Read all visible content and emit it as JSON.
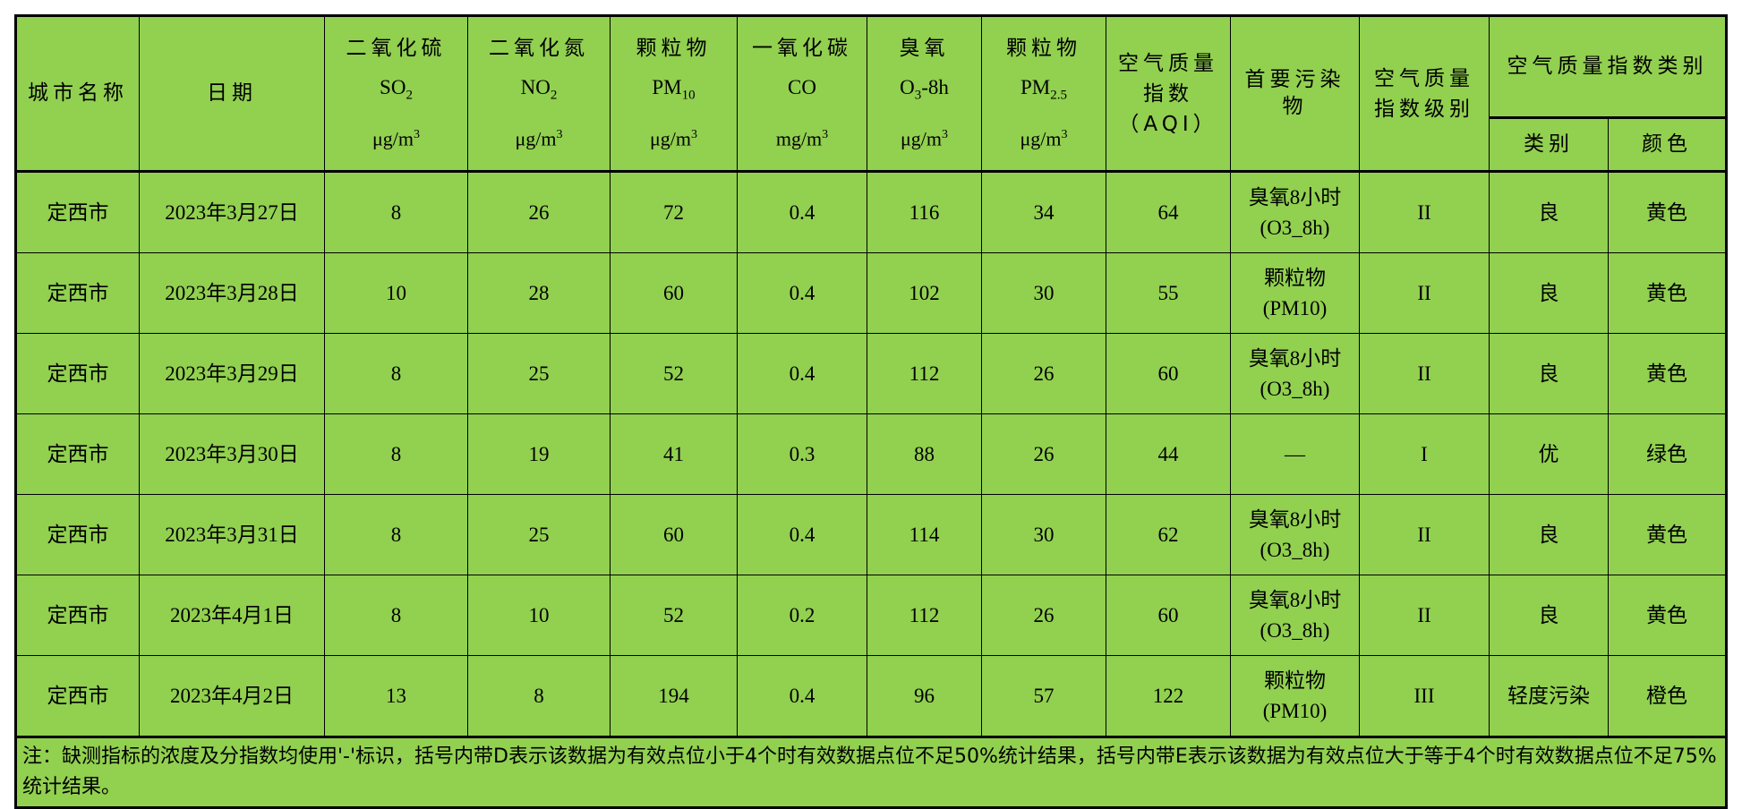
{
  "header": {
    "city": "城市名称",
    "date": "日期",
    "columns": [
      {
        "name": "二氧化硫",
        "formula": "SO",
        "sub": "2",
        "suffix": "",
        "unit": "μg/m",
        "sup": "3"
      },
      {
        "name": "二氧化氮",
        "formula": "NO",
        "sub": "2",
        "suffix": "",
        "unit": "μg/m",
        "sup": "3"
      },
      {
        "name": "颗粒物",
        "formula": "PM",
        "sub": "10",
        "suffix": "",
        "unit": "μg/m",
        "sup": "3"
      },
      {
        "name": "一氧化碳",
        "formula": "CO",
        "sub": "",
        "suffix": "",
        "unit": "mg/m",
        "sup": "3"
      },
      {
        "name": "臭氧",
        "formula": "O",
        "sub": "3",
        "suffix": "-8h",
        "unit": "μg/m",
        "sup": "3"
      },
      {
        "name": "颗粒物",
        "formula": "PM",
        "sub": "2.5",
        "suffix": "",
        "unit": "μg/m",
        "sup": "3"
      }
    ],
    "aqi_line1": "空气质量",
    "aqi_line2": "指数",
    "aqi_line3": "（AQI）",
    "primary_pollutant": "首要污染物",
    "level_line1": "空气质量",
    "level_line2": "指数级别",
    "category_group": "空气质量指数类别",
    "category": "类别",
    "color": "颜色"
  },
  "rows": [
    {
      "city": "定西市",
      "date": "2023年3月27日",
      "so2": "8",
      "no2": "26",
      "pm10": "72",
      "co": "0.4",
      "o3": "116",
      "pm25": "34",
      "aqi": "64",
      "pol1": "臭氧8小时",
      "pol2": "(O3_8h)",
      "level": "II",
      "category": "良",
      "color": "黄色"
    },
    {
      "city": "定西市",
      "date": "2023年3月28日",
      "so2": "10",
      "no2": "28",
      "pm10": "60",
      "co": "0.4",
      "o3": "102",
      "pm25": "30",
      "aqi": "55",
      "pol1": "颗粒物",
      "pol2": "(PM10)",
      "level": "II",
      "category": "良",
      "color": "黄色"
    },
    {
      "city": "定西市",
      "date": "2023年3月29日",
      "so2": "8",
      "no2": "25",
      "pm10": "52",
      "co": "0.4",
      "o3": "112",
      "pm25": "26",
      "aqi": "60",
      "pol1": "臭氧8小时",
      "pol2": "(O3_8h)",
      "level": "II",
      "category": "良",
      "color": "黄色"
    },
    {
      "city": "定西市",
      "date": "2023年3月30日",
      "so2": "8",
      "no2": "19",
      "pm10": "41",
      "co": "0.3",
      "o3": "88",
      "pm25": "26",
      "aqi": "44",
      "pol1": "—",
      "pol2": "",
      "level": "I",
      "category": "优",
      "color": "绿色"
    },
    {
      "city": "定西市",
      "date": "2023年3月31日",
      "so2": "8",
      "no2": "25",
      "pm10": "60",
      "co": "0.4",
      "o3": "114",
      "pm25": "30",
      "aqi": "62",
      "pol1": "臭氧8小时",
      "pol2": "(O3_8h)",
      "level": "II",
      "category": "良",
      "color": "黄色"
    },
    {
      "city": "定西市",
      "date": "2023年4月1日",
      "so2": "8",
      "no2": "10",
      "pm10": "52",
      "co": "0.2",
      "o3": "112",
      "pm25": "26",
      "aqi": "60",
      "pol1": "臭氧8小时",
      "pol2": "(O3_8h)",
      "level": "II",
      "category": "良",
      "color": "黄色"
    },
    {
      "city": "定西市",
      "date": "2023年4月2日",
      "so2": "13",
      "no2": "8",
      "pm10": "194",
      "co": "0.4",
      "o3": "96",
      "pm25": "57",
      "aqi": "122",
      "pol1": "颗粒物",
      "pol2": "(PM10)",
      "level": "III",
      "category": "轻度污染",
      "color": "橙色"
    }
  ],
  "note": "注：缺测指标的浓度及分指数均使用'-'标识，括号内带D表示该数据为有效点位小于4个时有效数据点位不足50%统计结果，括号内带E表示该数据为有效点位大于等于4个时有效数据点位不足75%统计结果。",
  "colors": {
    "table_background": "#92D050",
    "border": "#000000"
  }
}
